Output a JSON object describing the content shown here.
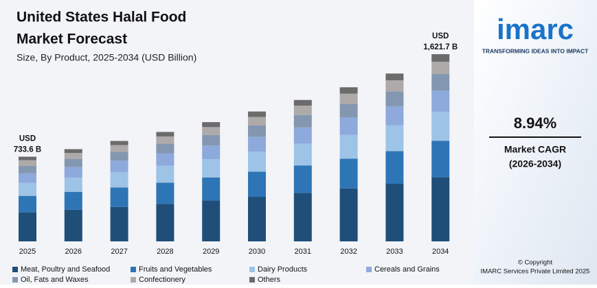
{
  "chart_data": {
    "type": "stacked_bar",
    "title": [
      "United States Halal Food",
      "Market Forecast"
    ],
    "subtitle": "Size, By Product, 2025-2034 (USD Billion)",
    "categories": [
      "2025",
      "2026",
      "2027",
      "2028",
      "2029",
      "2030",
      "2031",
      "2032",
      "2033",
      "2034"
    ],
    "series": [
      {
        "name": "Meat, Poultry and Seafood",
        "color": "#1f4e79",
        "values": [
          251.6,
          274,
          298,
          325,
          354,
          386,
          420,
          458,
          499,
          556.7
        ]
      },
      {
        "name": "Fruits and Vegetables",
        "color": "#2e75b6",
        "values": [
          142.3,
          155,
          169,
          184,
          200,
          218,
          238,
          259,
          282,
          315
        ]
      },
      {
        "name": "Dairy Products",
        "color": "#9dc3e6",
        "values": [
          113.0,
          123,
          134,
          146,
          159,
          173,
          189,
          206,
          224,
          250
        ]
      },
      {
        "name": "Cereals and Grains",
        "color": "#8ea9db",
        "values": [
          83.6,
          91,
          99,
          108,
          118,
          128,
          140,
          152,
          166,
          185
        ]
      },
      {
        "name": "Oil, Fats and Waxes",
        "color": "#8497b0",
        "values": [
          64.6,
          70,
          77,
          83,
          91,
          99,
          108,
          117,
          128,
          143
        ]
      },
      {
        "name": "Confectionery",
        "color": "#aeaaaa",
        "values": [
          48.4,
          53,
          57,
          63,
          68,
          74,
          81,
          88,
          96,
          107
        ]
      },
      {
        "name": "Others",
        "color": "#6b6b6b",
        "values": [
          30.1,
          33,
          36,
          39,
          43,
          47,
          49,
          55,
          59,
          65
        ]
      }
    ],
    "annotations": [
      {
        "x": "2025",
        "lines": [
          "USD",
          "733.6 B"
        ]
      },
      {
        "x": "2034",
        "lines": [
          "USD",
          "1,621.7 B"
        ]
      }
    ]
  },
  "sidebar": {
    "logo": "imarc",
    "tagline": "TRANSFORMING IDEAS INTO IMPACT",
    "cagr": "8.94%",
    "cagr_label": "Market CAGR",
    "cagr_period": "(2026-2034)",
    "copyright": [
      "© Copyright",
      "IMARC Services Private Limited 2025"
    ]
  }
}
